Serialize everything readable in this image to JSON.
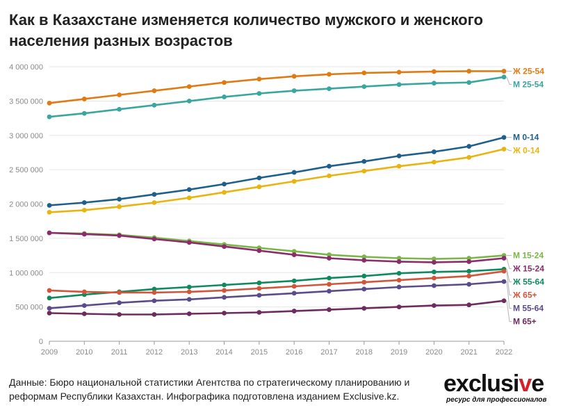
{
  "title": "Как в Казахстане изменяется количество мужского и женского населения разных возрастов",
  "source": "Данные: Бюро национальной статистики Агентства по стратегическому планированию и реформам Республики Казахстан. Инфографика подготовлена изданием Exclusive.kz.",
  "logo": {
    "word_prefix": "exclusi",
    "word_accent": "v",
    "word_suffix": "e",
    "tagline": "ресурс для профессионалов"
  },
  "chart_data": {
    "type": "line",
    "x": [
      2009,
      2010,
      2011,
      2012,
      2013,
      2014,
      2015,
      2016,
      2017,
      2018,
      2019,
      2020,
      2021,
      2022
    ],
    "ylim": [
      0,
      4000000
    ],
    "yticks": [
      0,
      500000,
      1000000,
      1500000,
      2000000,
      2500000,
      3000000,
      3500000,
      4000000
    ],
    "ytick_labels": [
      "0",
      "500 000",
      "1 000 000",
      "1 500 000",
      "2 000 000",
      "2 500 000",
      "3 000 000",
      "3 500 000",
      "4 000 000"
    ],
    "grid": true,
    "legend": "end-of-line labels",
    "series": [
      {
        "name": "Ж 25-54",
        "color": "#e07b14",
        "values": [
          3470000,
          3530000,
          3590000,
          3650000,
          3710000,
          3770000,
          3820000,
          3860000,
          3890000,
          3910000,
          3920000,
          3930000,
          3935000,
          3935000
        ]
      },
      {
        "name": "М 25-54",
        "color": "#3aa6a0",
        "values": [
          3270000,
          3320000,
          3380000,
          3440000,
          3500000,
          3560000,
          3610000,
          3650000,
          3680000,
          3710000,
          3740000,
          3760000,
          3770000,
          3850000
        ]
      },
      {
        "name": "М 0-14",
        "color": "#1f5f8b",
        "values": [
          1980000,
          2020000,
          2070000,
          2140000,
          2210000,
          2290000,
          2380000,
          2460000,
          2550000,
          2620000,
          2700000,
          2760000,
          2840000,
          2970000
        ]
      },
      {
        "name": "Ж 0-14",
        "color": "#e8b410",
        "values": [
          1880000,
          1910000,
          1960000,
          2020000,
          2090000,
          2170000,
          2250000,
          2330000,
          2410000,
          2480000,
          2550000,
          2610000,
          2680000,
          2800000
        ]
      },
      {
        "name": "М 15-24",
        "color": "#7ab648",
        "values": [
          1580000,
          1570000,
          1550000,
          1510000,
          1460000,
          1410000,
          1360000,
          1310000,
          1260000,
          1230000,
          1210000,
          1200000,
          1210000,
          1250000
        ]
      },
      {
        "name": "Ж 15-24",
        "color": "#8b2c6d",
        "values": [
          1580000,
          1560000,
          1540000,
          1490000,
          1440000,
          1380000,
          1320000,
          1260000,
          1210000,
          1180000,
          1160000,
          1150000,
          1160000,
          1210000
        ]
      },
      {
        "name": "Ж 55-64",
        "color": "#0f8a5f",
        "values": [
          630000,
          680000,
          720000,
          760000,
          790000,
          820000,
          850000,
          880000,
          920000,
          950000,
          990000,
          1010000,
          1020000,
          1050000
        ]
      },
      {
        "name": "Ж 65+",
        "color": "#d2553a",
        "values": [
          740000,
          720000,
          710000,
          710000,
          720000,
          740000,
          770000,
          800000,
          830000,
          860000,
          890000,
          920000,
          950000,
          1020000
        ]
      },
      {
        "name": "М 55-64",
        "color": "#5b4b8a",
        "values": [
          480000,
          520000,
          560000,
          590000,
          610000,
          640000,
          670000,
          700000,
          730000,
          760000,
          790000,
          810000,
          830000,
          870000
        ]
      },
      {
        "name": "М 65+",
        "color": "#6e2c5e",
        "values": [
          410000,
          400000,
          390000,
          390000,
          400000,
          410000,
          420000,
          440000,
          460000,
          480000,
          500000,
          520000,
          530000,
          590000
        ]
      }
    ]
  }
}
